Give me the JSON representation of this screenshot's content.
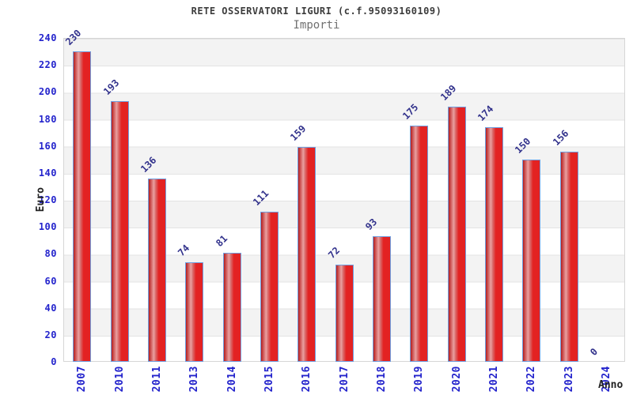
{
  "header": {
    "title": "RETE OSSERVATORI LIGURI (c.f.95093160109)",
    "subtitle": "Importi"
  },
  "chart_data": {
    "type": "bar",
    "title": "RETE OSSERVATORI LIGURI (c.f.95093160109)",
    "subtitle": "Importi",
    "categories": [
      "2007",
      "2010",
      "2011",
      "2013",
      "2014",
      "2015",
      "2016",
      "2017",
      "2018",
      "2019",
      "2020",
      "2021",
      "2022",
      "2023",
      "2024"
    ],
    "values": [
      230,
      193,
      136,
      74,
      81,
      111,
      159,
      72,
      93,
      175,
      189,
      174,
      150,
      156,
      0
    ],
    "xlabel": "Anno",
    "ylabel": "Euro",
    "ylim": [
      0,
      240
    ],
    "ytick_step": 20,
    "legend": "none",
    "grid": "horizontal gridlines every 20 with alternating gray/white bands",
    "bar_value_labels_rotated_degrees": -45,
    "colors": {
      "axis_text": "#2323cc",
      "value_label": "#32328c",
      "title": "#3c3c3c",
      "subtitle": "#707070",
      "bar_border": "#6f9fe0",
      "bar_gradient": [
        "#b51d1d",
        "#cf5b5b",
        "#eaa0a0",
        "#d96a6a",
        "#e32222"
      ],
      "band_gray": "#f3f3f3",
      "band_white": "#ffffff",
      "grid_line": "#e3e3e3"
    }
  }
}
